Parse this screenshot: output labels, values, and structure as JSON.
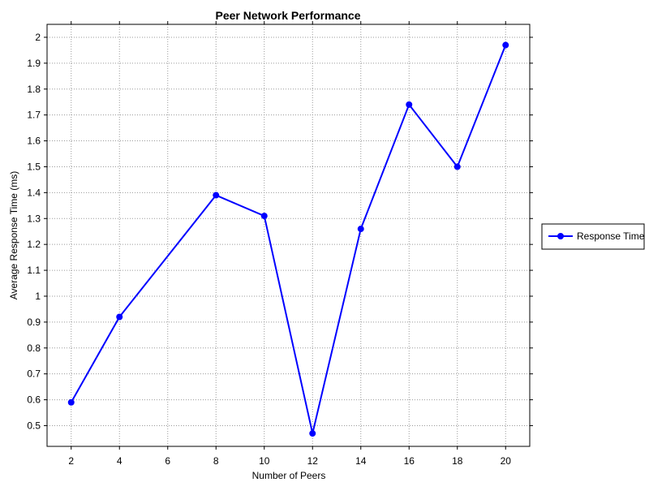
{
  "chart_data": {
    "type": "line",
    "title": "Peer Network Performance",
    "xlabel": "Number of Peers",
    "ylabel": "Average Response Time (ms)",
    "x_ticks": [
      2,
      4,
      6,
      8,
      10,
      12,
      14,
      16,
      18,
      20
    ],
    "x_tick_labels": [
      "2",
      "4",
      "6",
      "8",
      "10",
      "12",
      "14",
      "16",
      "18",
      "20"
    ],
    "y_ticks": [
      0.5,
      0.6,
      0.7,
      0.8,
      0.9,
      1.0,
      1.1,
      1.2,
      1.3,
      1.4,
      1.5,
      1.6,
      1.7,
      1.8,
      1.9,
      2.0
    ],
    "y_tick_labels": [
      "0.5",
      "0.6",
      "0.7",
      "0.8",
      "0.9",
      "1",
      "1.1",
      "1.2",
      "1.3",
      "1.4",
      "1.5",
      "1.6",
      "1.7",
      "1.8",
      "1.9",
      "2"
    ],
    "xlim": [
      1,
      21
    ],
    "ylim": [
      0.42,
      2.05
    ],
    "grid": true,
    "legend_position": "right",
    "series": [
      {
        "name": "Response Time",
        "color": "#0000ff",
        "marker": "circle",
        "x": [
          2,
          4,
          8,
          10,
          12,
          14,
          16,
          18,
          20
        ],
        "y": [
          0.59,
          0.92,
          1.39,
          1.31,
          0.47,
          1.26,
          1.74,
          1.5,
          1.97
        ]
      }
    ]
  }
}
